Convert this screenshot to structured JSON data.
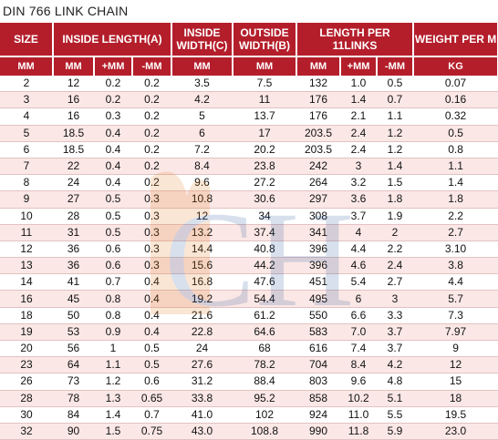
{
  "title": "DIN 766 LINK CHAIN",
  "headers": {
    "size": "SIZE",
    "inside_length": "INSIDE LENGTH(A)",
    "inside_width": "INSIDE WIDTH(C)",
    "outside_width": "OUTSIDE WIDTH(B)",
    "length_per": "LENGTH PER 11LINKS",
    "weight_per": "WEIGHT PER M"
  },
  "subheaders": [
    "MM",
    "MM",
    "+MM",
    "-MM",
    "MM",
    "MM",
    "MM",
    "+MM",
    "-MM",
    "KG"
  ],
  "rows": [
    [
      "2",
      "12",
      "0.2",
      "0.2",
      "3.5",
      "7.5",
      "132",
      "1.0",
      "0.5",
      "0.07"
    ],
    [
      "3",
      "16",
      "0.2",
      "0.2",
      "4.2",
      "11",
      "176",
      "1.4",
      "0.7",
      "0.16"
    ],
    [
      "4",
      "16",
      "0.3",
      "0.2",
      "5",
      "13.7",
      "176",
      "2.1",
      "1.1",
      "0.32"
    ],
    [
      "5",
      "18.5",
      "0.4",
      "0.2",
      "6",
      "17",
      "203.5",
      "2.4",
      "1.2",
      "0.5"
    ],
    [
      "6",
      "18.5",
      "0.4",
      "0.2",
      "7.2",
      "20.2",
      "203.5",
      "2.4",
      "1.2",
      "0.8"
    ],
    [
      "7",
      "22",
      "0.4",
      "0.2",
      "8.4",
      "23.8",
      "242",
      "3",
      "1.4",
      "1.1"
    ],
    [
      "8",
      "24",
      "0.4",
      "0.2",
      "9.6",
      "27.2",
      "264",
      "3.2",
      "1.5",
      "1.4"
    ],
    [
      "9",
      "27",
      "0.5",
      "0.3",
      "10.8",
      "30.6",
      "297",
      "3.6",
      "1.8",
      "1.8"
    ],
    [
      "10",
      "28",
      "0.5",
      "0.3",
      "12",
      "34",
      "308",
      "3.7",
      "1.9",
      "2.2"
    ],
    [
      "11",
      "31",
      "0.5",
      "0.3",
      "13.2",
      "37.4",
      "341",
      "4",
      "2",
      "2.7"
    ],
    [
      "12",
      "36",
      "0.6",
      "0.3",
      "14.4",
      "40.8",
      "396",
      "4.4",
      "2.2",
      "3.10"
    ],
    [
      "13",
      "36",
      "0.6",
      "0.3",
      "15.6",
      "44.2",
      "396",
      "4.6",
      "2.4",
      "3.8"
    ],
    [
      "14",
      "41",
      "0.7",
      "0.4",
      "16.8",
      "47.6",
      "451",
      "5.4",
      "2.7",
      "4.4"
    ],
    [
      "16",
      "45",
      "0.8",
      "0.4",
      "19.2",
      "54.4",
      "495",
      "6",
      "3",
      "5.7"
    ],
    [
      "18",
      "50",
      "0.8",
      "0.4",
      "21.6",
      "61.2",
      "550",
      "6.6",
      "3.3",
      "7.3"
    ],
    [
      "19",
      "53",
      "0.9",
      "0.4",
      "22.8",
      "64.6",
      "583",
      "7.0",
      "3.7",
      "7.97"
    ],
    [
      "20",
      "56",
      "1",
      "0.5",
      "24",
      "68",
      "616",
      "7.4",
      "3.7",
      "9"
    ],
    [
      "23",
      "64",
      "1.1",
      "0.5",
      "27.6",
      "78.2",
      "704",
      "8.4",
      "4.2",
      "12"
    ],
    [
      "26",
      "73",
      "1.2",
      "0.6",
      "31.2",
      "88.4",
      "803",
      "9.6",
      "4.8",
      "15"
    ],
    [
      "28",
      "78",
      "1.3",
      "0.65",
      "33.8",
      "95.2",
      "858",
      "10.2",
      "5.1",
      "18"
    ],
    [
      "30",
      "84",
      "1.4",
      "0.7",
      "41.0",
      "102",
      "924",
      "11.0",
      "5.5",
      "19.5"
    ],
    [
      "32",
      "90",
      "1.5",
      "0.75",
      "43.0",
      "108.8",
      "990",
      "11.8",
      "5.9",
      "23.0"
    ]
  ],
  "colors": {
    "header_bg": "#b41e2b",
    "stripe": "#fbe8e6",
    "watermark": "#2a5a9c"
  }
}
